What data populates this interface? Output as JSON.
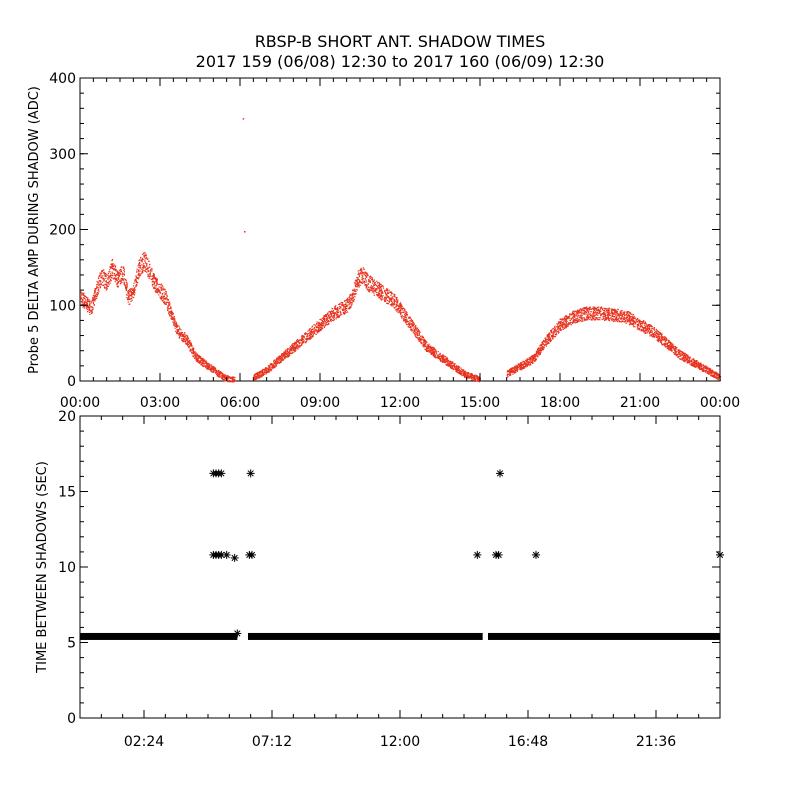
{
  "title": {
    "line1": "RBSP-B SHORT ANT. SHADOW TIMES",
    "line2": "2017 159 (06/08) 12:30 to 2017 160 (06/09) 12:30"
  },
  "colors": {
    "top_series": "#e8321e",
    "bottom_series": "#000000",
    "axis": "#000000",
    "background": "#ffffff"
  },
  "chart_data": [
    {
      "type": "scatter",
      "name": "delta-amp-panel",
      "ylabel": "Probe 5 DELTA AMP DURING SHADOW (ADC)",
      "xlabel": "",
      "xlim_hours": [
        0,
        24
      ],
      "ylim": [
        0,
        400
      ],
      "x_tick_labels": [
        "00:00",
        "03:00",
        "06:00",
        "09:00",
        "12:00",
        "15:00",
        "18:00",
        "21:00",
        "00:00"
      ],
      "x_tick_hours": [
        0,
        3,
        6,
        9,
        12,
        15,
        18,
        21,
        24
      ],
      "y_ticks": [
        0,
        100,
        200,
        300,
        400
      ],
      "marker": "dot",
      "envelope_hours": [
        0,
        0.2,
        0.4,
        0.6,
        0.8,
        1.0,
        1.2,
        1.4,
        1.6,
        1.8,
        2.0,
        2.2,
        2.4,
        2.6,
        2.8,
        3.0,
        3.2,
        3.4,
        3.6,
        3.8,
        4.0,
        4.2,
        4.4,
        4.6,
        4.8,
        5.0,
        5.2,
        5.4,
        5.6,
        5.8,
        6.0,
        6.5,
        7.0,
        7.5,
        8.0,
        8.5,
        9.0,
        9.5,
        10.0,
        10.2,
        10.4,
        10.6,
        10.8,
        11.0,
        11.2,
        11.4,
        11.6,
        11.8,
        12.0,
        12.2,
        12.4,
        12.6,
        12.8,
        13.0,
        13.2,
        13.4,
        13.6,
        13.8,
        14.0,
        14.2,
        14.4,
        14.6,
        14.8,
        15.0,
        15.5,
        16.0,
        16.5,
        17.0,
        17.5,
        18.0,
        18.5,
        19.0,
        19.5,
        20.0,
        20.5,
        21.0,
        21.5,
        22.0,
        22.5,
        23.0,
        23.5,
        24.0
      ],
      "envelope_values": [
        110,
        105,
        95,
        120,
        140,
        130,
        150,
        135,
        145,
        110,
        120,
        150,
        160,
        145,
        130,
        120,
        110,
        90,
        70,
        60,
        55,
        40,
        30,
        25,
        20,
        15,
        10,
        5,
        3,
        2,
        null,
        5,
        15,
        30,
        45,
        60,
        75,
        90,
        100,
        110,
        135,
        140,
        130,
        125,
        120,
        115,
        110,
        105,
        95,
        85,
        75,
        65,
        55,
        45,
        40,
        35,
        30,
        25,
        20,
        15,
        10,
        7,
        5,
        2,
        null,
        10,
        20,
        30,
        55,
        75,
        85,
        90,
        90,
        88,
        85,
        75,
        65,
        50,
        35,
        25,
        15,
        5
      ],
      "spread": 22,
      "outliers": [
        {
          "x": 6.1,
          "y": 347
        },
        {
          "x": 6.15,
          "y": 198
        }
      ]
    },
    {
      "type": "scatter",
      "name": "time-between-panel",
      "ylabel": "TIME BETWEEN SHADOWS (SEC)",
      "xlabel": "",
      "xlim_hours": [
        0,
        24
      ],
      "ylim": [
        0,
        20
      ],
      "x_tick_labels": [
        "02:24",
        "07:12",
        "12:00",
        "16:48",
        "21:36"
      ],
      "x_tick_hours": [
        2.4,
        7.2,
        12.0,
        16.8,
        21.6
      ],
      "y_ticks": [
        0,
        5,
        10,
        15,
        20
      ],
      "marker": "asterisk",
      "baseline_value": 5.4,
      "baseline_segments": [
        [
          0.0,
          5.9
        ],
        [
          6.3,
          15.1
        ],
        [
          15.3,
          24.0
        ]
      ],
      "points": [
        {
          "x": 5.0,
          "y": 16.2
        },
        {
          "x": 5.1,
          "y": 16.2
        },
        {
          "x": 5.2,
          "y": 16.2
        },
        {
          "x": 5.3,
          "y": 16.2
        },
        {
          "x": 5.0,
          "y": 10.8
        },
        {
          "x": 5.1,
          "y": 10.8
        },
        {
          "x": 5.2,
          "y": 10.8
        },
        {
          "x": 5.3,
          "y": 10.8
        },
        {
          "x": 5.5,
          "y": 10.8
        },
        {
          "x": 5.8,
          "y": 10.6
        },
        {
          "x": 5.9,
          "y": 5.6
        },
        {
          "x": 6.4,
          "y": 16.2
        },
        {
          "x": 6.35,
          "y": 10.8
        },
        {
          "x": 6.45,
          "y": 10.8
        },
        {
          "x": 14.9,
          "y": 10.8
        },
        {
          "x": 15.6,
          "y": 10.8
        },
        {
          "x": 15.7,
          "y": 10.8
        },
        {
          "x": 15.75,
          "y": 16.2
        },
        {
          "x": 17.1,
          "y": 10.8
        },
        {
          "x": 24.0,
          "y": 10.8
        }
      ]
    }
  ]
}
